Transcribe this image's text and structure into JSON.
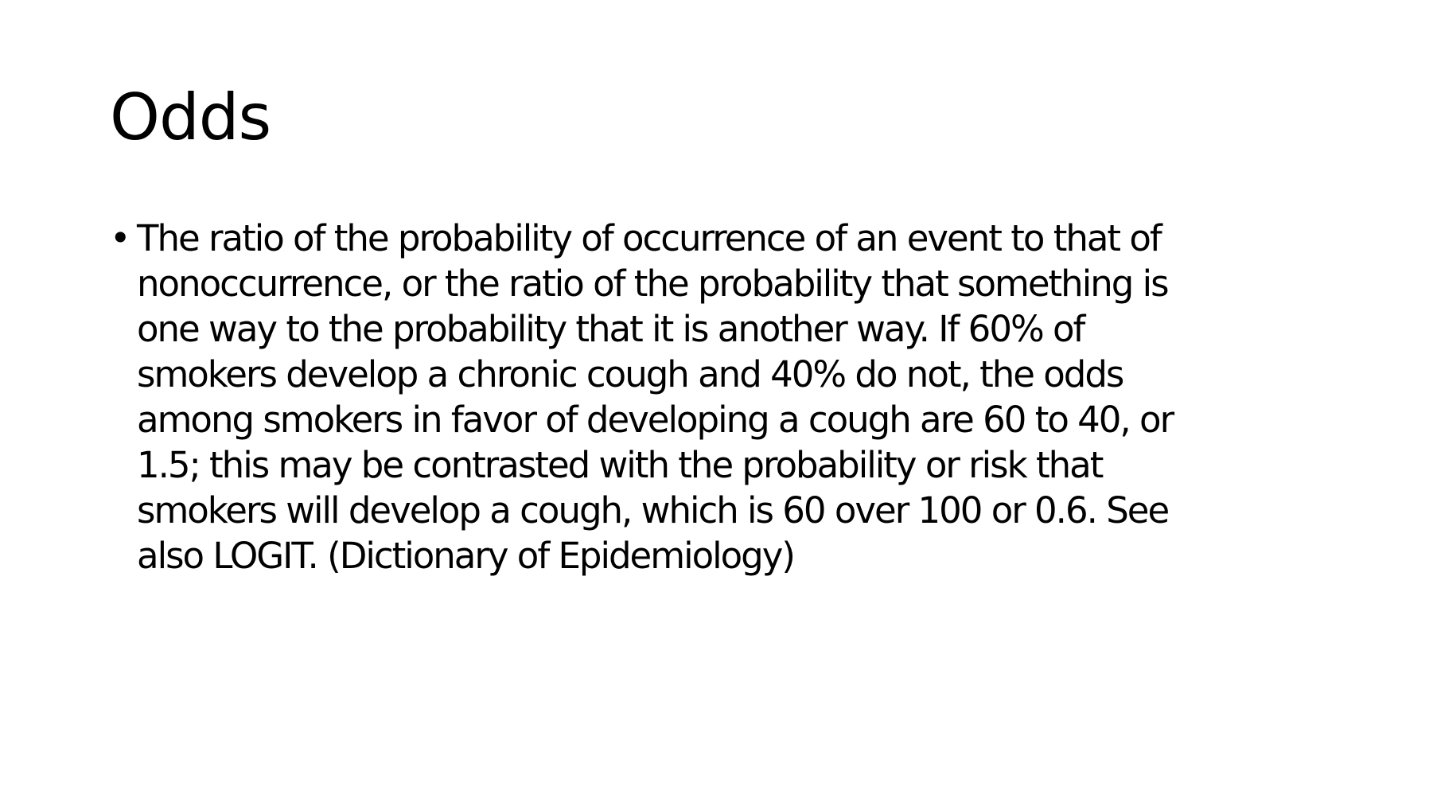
{
  "slide": {
    "title": "Odds",
    "bullets": [
      {
        "marker": "•",
        "lines": [
          "The ratio of the probability of occurrence of an event to that of",
          "nonoccurrence, or the ratio of the probability that something is",
          "one way to the probability that it is another way. If 60% of",
          "smokers develop a chronic cough and 40% do not, the odds",
          "among smokers in favor of developing a cough are 60 to 40, or",
          "1.5; this may be contrasted with the probability or risk that",
          "smokers will develop a cough, which is 60 over 100 or 0.6. See",
          "also LOGIT. (Dictionary of Epidemiology)"
        ]
      }
    ]
  }
}
